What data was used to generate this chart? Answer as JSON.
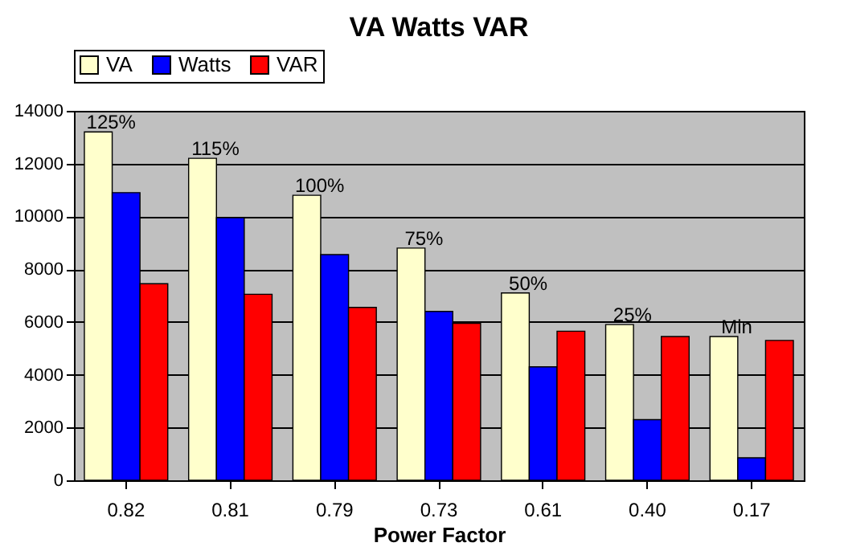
{
  "chart_data": {
    "type": "bar",
    "title": "VA Watts VAR",
    "xlabel": "Power Factor",
    "categories": [
      "0.82",
      "0.81",
      "0.79",
      "0.73",
      "0.61",
      "0.40",
      "0.17"
    ],
    "series": [
      {
        "name": "VA",
        "color": "#ffffcc",
        "values": [
          13200,
          12200,
          10800,
          8800,
          7100,
          5900,
          5450
        ]
      },
      {
        "name": "Watts",
        "color": "#0000ff",
        "values": [
          10900,
          9950,
          8550,
          6400,
          4300,
          2300,
          850
        ]
      },
      {
        "name": "VAR",
        "color": "#ff0000",
        "values": [
          7450,
          7050,
          6550,
          5950,
          5650,
          5450,
          5300
        ]
      }
    ],
    "ylim": [
      0,
      14000
    ],
    "yticks": [
      0,
      2000,
      4000,
      6000,
      8000,
      10000,
      12000,
      14000
    ],
    "grid": "y",
    "legend": "top",
    "annotations": [
      "125%",
      "115%",
      "100%",
      "75%",
      "50%",
      "25%",
      "Min"
    ]
  }
}
